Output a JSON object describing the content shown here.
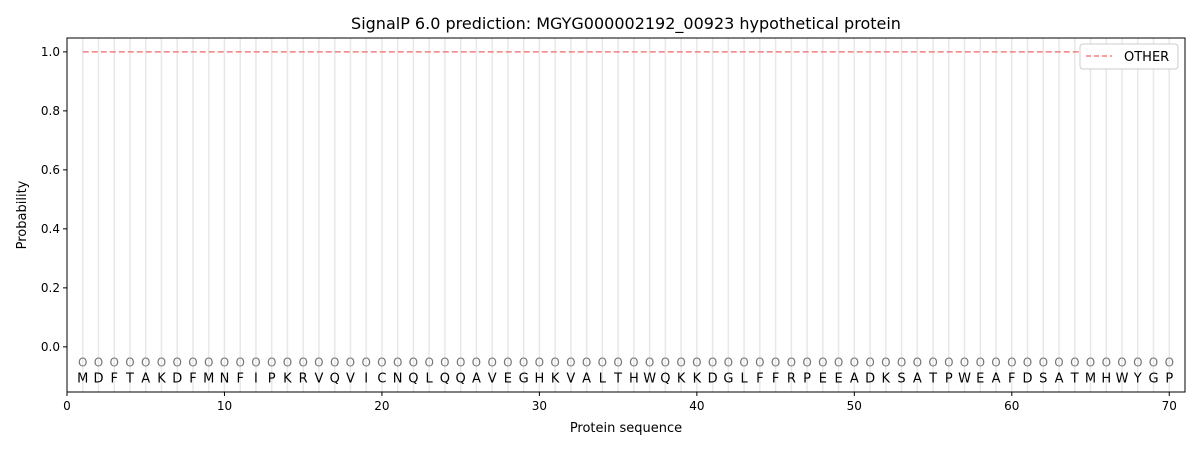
{
  "chart_data": {
    "type": "line",
    "title": "SignalP 6.0 prediction: MGYG000002192_00923 hypothetical protein",
    "xlabel": "Protein sequence",
    "ylabel": "Probability",
    "xlim": [
      0,
      71
    ],
    "ylim": [
      -0.153,
      1.047
    ],
    "xticks": [
      0,
      10,
      20,
      30,
      40,
      50,
      60,
      70
    ],
    "yticks": [
      0.0,
      0.2,
      0.4,
      0.6,
      0.8,
      1.0
    ],
    "ytick_labels": [
      "0.0",
      "0.2",
      "0.4",
      "0.6",
      "0.8",
      "1.0"
    ],
    "grid": "vertical lines at each residue",
    "legend_position": "top-right",
    "sequence": [
      "M",
      "D",
      "F",
      "T",
      "A",
      "K",
      "D",
      "F",
      "M",
      "N",
      "F",
      "I",
      "P",
      "K",
      "R",
      "V",
      "Q",
      "V",
      "I",
      "C",
      "N",
      "Q",
      "L",
      "Q",
      "Q",
      "A",
      "V",
      "E",
      "G",
      "H",
      "K",
      "V",
      "A",
      "L",
      "T",
      "H",
      "W",
      "Q",
      "K",
      "K",
      "D",
      "G",
      "L",
      "F",
      "F",
      "R",
      "P",
      "E",
      "E",
      "A",
      "D",
      "K",
      "S",
      "A",
      "T",
      "P",
      "W",
      "E",
      "A",
      "F",
      "D",
      "S",
      "A",
      "T",
      "M",
      "H",
      "W",
      "Y",
      "G",
      "P"
    ],
    "predicted_labels": "OOOOOOOOOOOOOOOOOOOOOOOOOOOOOOOOOOOOOOOOOOOOOOOOOOOOOOOOOOOOOOOOOOOOOO",
    "series": [
      {
        "name": "OTHER",
        "color": "#f08080",
        "style": "dashed",
        "x_range": [
          1,
          70
        ],
        "value": 1.0
      }
    ]
  }
}
